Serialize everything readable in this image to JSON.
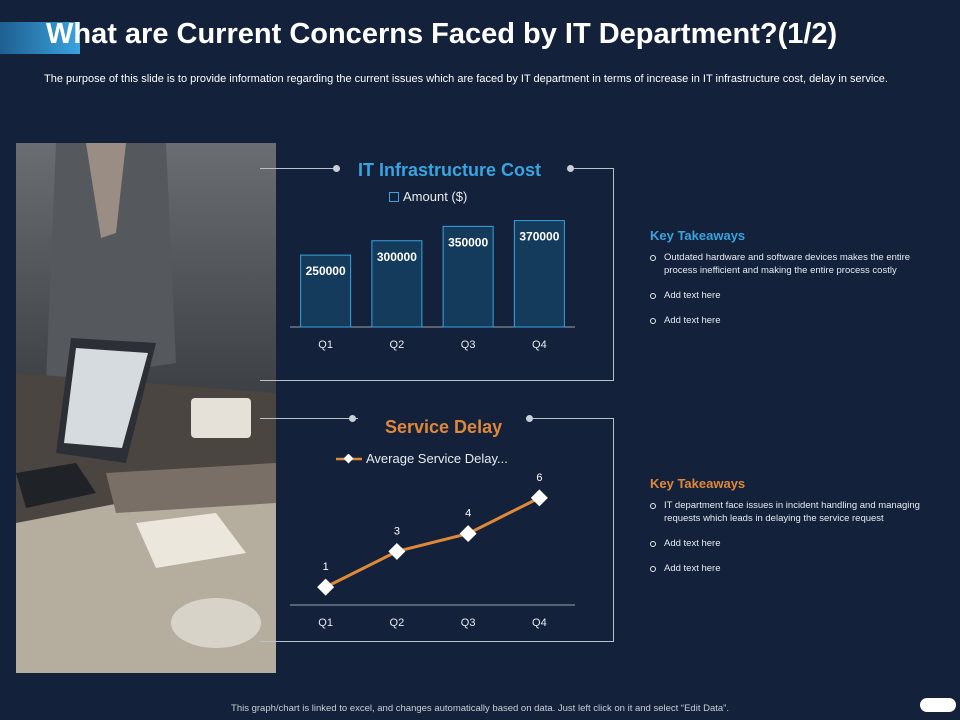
{
  "slide": {
    "title": "What are Current Concerns Faced by IT Department?(1/2)",
    "subtitle": "The purpose of this slide is to provide information regarding the current issues which are faced by IT department in terms of increase in IT infrastructure cost, delay in service.",
    "footer": "This graph/chart is linked to excel, and changes automatically based on data. Just left click on it and select “Edit Data”."
  },
  "colors": {
    "background": "#13213a",
    "accent_blue": "#3aa3e0",
    "accent_orange": "#e0883a",
    "bar_fill": "#143a5c"
  },
  "takeaways_top": {
    "title": "Key Takeaways",
    "items": [
      "Outdated hardware and software devices makes the entire process inefficient and making the entire process costly",
      "Add text here",
      "Add text here"
    ]
  },
  "takeaways_bottom": {
    "title": "Key Takeaways",
    "items": [
      "IT department face issues in incident handling and managing requests which leads in delaying the service request",
      "Add text here",
      "Add text here"
    ]
  },
  "chart_data": [
    {
      "type": "bar",
      "title": "IT Infrastructure  Cost",
      "categories": [
        "Q1",
        "Q2",
        "Q3",
        "Q4"
      ],
      "series": [
        {
          "name": "Amount ($)",
          "values": [
            250000,
            300000,
            350000,
            370000
          ]
        }
      ],
      "data_labels": true,
      "legend": "top",
      "grid": false,
      "ylim": [
        0,
        400000
      ]
    },
    {
      "type": "line",
      "title": "Service Delay",
      "categories": [
        "Q1",
        "Q2",
        "Q3",
        "Q4"
      ],
      "series": [
        {
          "name": "Average Service Delay...",
          "values": [
            1,
            3,
            4,
            6
          ]
        }
      ],
      "data_labels": true,
      "legend": "top",
      "grid": false,
      "ylim": [
        0,
        7
      ]
    }
  ]
}
